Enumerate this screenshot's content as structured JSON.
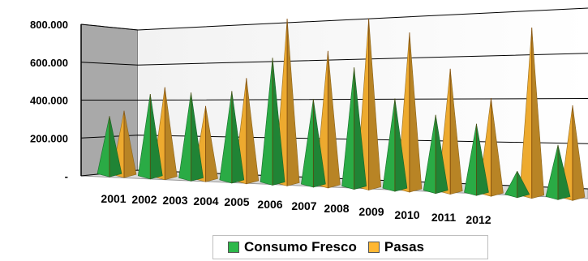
{
  "chart_data": {
    "type": "bar",
    "subtype": "3d-pyramid",
    "categories": [
      "2001",
      "2002",
      "2003",
      "2004",
      "2005",
      "2006",
      "2007",
      "2008",
      "2009",
      "2010",
      "2011",
      "2012"
    ],
    "series": [
      {
        "name": "Consumo Fresco",
        "color": "#2db84a",
        "values": [
          245000,
          345000,
          355000,
          365000,
          505000,
          340000,
          470000,
          350000,
          290000,
          260000,
          85000,
          190000
        ]
      },
      {
        "name": "Pasas",
        "color": "#ffb733",
        "values": [
          270000,
          375000,
          300000,
          420000,
          665000,
          535000,
          665000,
          610000,
          470000,
          360000,
          630000,
          340000
        ]
      }
    ],
    "ylim": [
      0,
      800000
    ],
    "yticks": [
      0,
      200000,
      400000,
      600000,
      800000
    ],
    "ytick_labels": [
      "-",
      "200.000",
      "400.000",
      "600.000",
      "800.000"
    ],
    "grid": true,
    "legend_position": "bottom"
  },
  "legend": {
    "items": [
      {
        "label": "Consumo Fresco",
        "color": "#2db84a"
      },
      {
        "label": "Pasas",
        "color": "#ffb733"
      }
    ]
  }
}
